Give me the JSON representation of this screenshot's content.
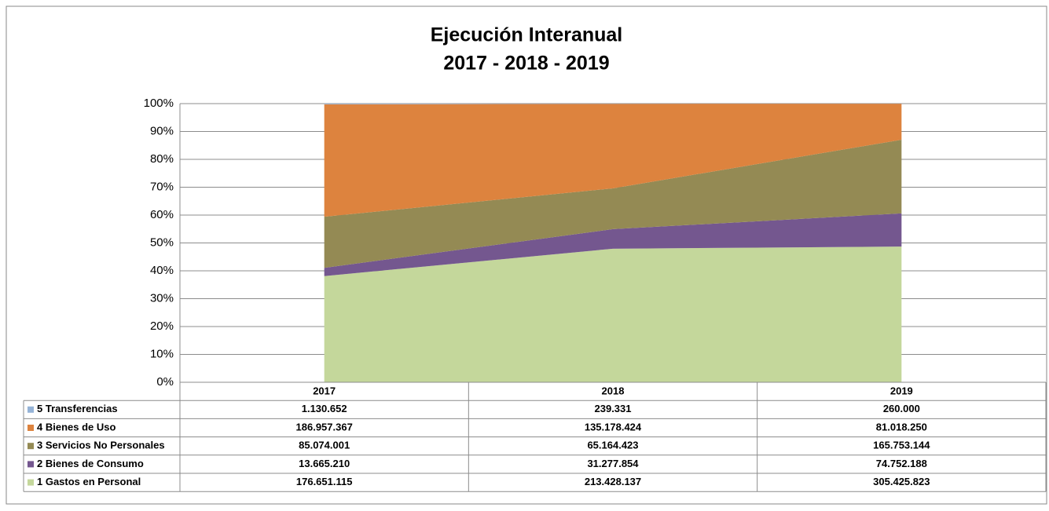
{
  "chart_data": {
    "type": "area",
    "stacked": "percent",
    "title": "Ejecución Interanual",
    "subtitle": "2017 - 2018 - 2019",
    "categories": [
      "2017",
      "2018",
      "2019"
    ],
    "series": [
      {
        "name": "1 Gastos en Personal",
        "color": "#c4d79b",
        "values": [
          176651115,
          213428137,
          305425823
        ],
        "value_labels": [
          "176.651.115",
          "213.428.137",
          "305.425.823"
        ]
      },
      {
        "name": "2 Bienes de Consumo",
        "color": "#74578f",
        "values": [
          13665210,
          31277854,
          74752188
        ],
        "value_labels": [
          "13.665.210",
          "31.277.854",
          "74.752.188"
        ]
      },
      {
        "name": "3 Servicios No Personales",
        "color": "#948a54",
        "values": [
          85074001,
          65164423,
          165753144
        ],
        "value_labels": [
          "85.074.001",
          "65.164.423",
          "165.753.144"
        ]
      },
      {
        "name": "4 Bienes de Uso",
        "color": "#dd833e",
        "values": [
          186957367,
          135178424,
          81018250
        ],
        "value_labels": [
          "186.957.367",
          "135.178.424",
          "81.018.250"
        ]
      },
      {
        "name": "5 Transferencias",
        "color": "#95b3d7",
        "values": [
          1130652,
          239331,
          260000
        ],
        "value_labels": [
          "1.130.652",
          "239.331",
          "260.000"
        ]
      }
    ],
    "ylim": [
      0,
      100
    ],
    "yticks": [
      {
        "value": 0,
        "label": "0%"
      },
      {
        "value": 10,
        "label": "10%"
      },
      {
        "value": 20,
        "label": "20%"
      },
      {
        "value": 30,
        "label": "30%"
      },
      {
        "value": 40,
        "label": "40%"
      },
      {
        "value": 50,
        "label": "50%"
      },
      {
        "value": 60,
        "label": "60%"
      },
      {
        "value": 70,
        "label": "70%"
      },
      {
        "value": 80,
        "label": "80%"
      },
      {
        "value": 90,
        "label": "90%"
      },
      {
        "value": 100,
        "label": "100%"
      }
    ],
    "grid": true,
    "data_table": true
  }
}
